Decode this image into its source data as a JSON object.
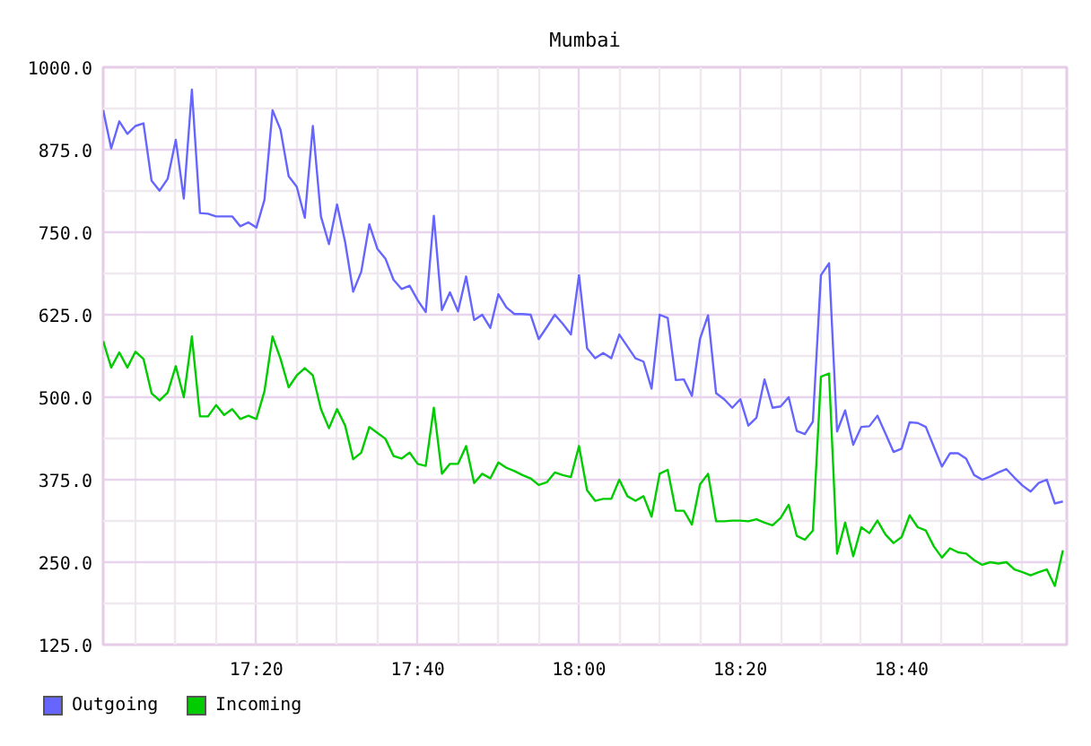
{
  "chart_data": {
    "type": "line",
    "title": "Mumbai",
    "x": [
      17.0167,
      17.0333,
      17.05,
      17.0667,
      17.0833,
      17.1,
      17.1167,
      17.1333,
      17.15,
      17.1667,
      17.1833,
      17.2,
      17.2167,
      17.2333,
      17.25,
      17.2667,
      17.2833,
      17.3,
      17.3167,
      17.3333,
      17.35,
      17.3667,
      17.3833,
      17.4,
      17.4167,
      17.4333,
      17.45,
      17.4667,
      17.4833,
      17.5,
      17.5167,
      17.5333,
      17.55,
      17.5667,
      17.5833,
      17.6,
      17.6167,
      17.6333,
      17.65,
      17.6667,
      17.6833,
      17.7,
      17.7167,
      17.7333,
      17.75,
      17.7667,
      17.7833,
      17.8,
      17.8167,
      17.8333,
      17.85,
      17.8667,
      17.8833,
      17.9,
      17.9167,
      17.9333,
      17.95,
      17.9667,
      17.9833,
      18.0,
      18.0167,
      18.0333,
      18.05,
      18.0667,
      18.0833,
      18.1,
      18.1167,
      18.1333,
      18.15,
      18.1667,
      18.1833,
      18.2,
      18.2167,
      18.2333,
      18.25,
      18.2667,
      18.2833,
      18.3,
      18.3167,
      18.3333,
      18.35,
      18.3667,
      18.3833,
      18.4,
      18.4167,
      18.4333,
      18.45,
      18.4667,
      18.4833,
      18.5,
      18.5167,
      18.5333,
      18.55,
      18.5667,
      18.5833,
      18.6,
      18.6167,
      18.6333,
      18.65,
      18.6667,
      18.6833,
      18.7,
      18.7167,
      18.7333,
      18.75,
      18.7667,
      18.7833,
      18.8,
      18.8167,
      18.8333,
      18.85,
      18.8667,
      18.8833,
      18.9,
      18.9167,
      18.9333,
      18.95,
      18.9667,
      18.9833,
      19.0
    ],
    "series": [
      {
        "name": "Outgoing",
        "color": "#6666ff",
        "values": [
          935,
          877,
          918,
          899,
          911,
          915,
          828,
          813,
          831,
          890,
          801,
          966,
          779,
          778,
          774,
          774,
          774,
          759,
          765,
          757,
          799,
          935,
          905,
          835,
          819,
          772,
          911,
          774,
          732,
          792,
          735,
          660,
          690,
          762,
          725,
          710,
          678,
          664,
          669,
          647,
          629,
          775,
          632,
          659,
          630,
          683,
          617,
          625,
          605,
          656,
          636,
          626,
          626,
          625,
          588,
          606,
          625,
          611,
          595,
          685,
          574,
          559,
          567,
          559,
          595,
          577,
          559,
          554,
          513,
          625,
          620,
          526,
          527,
          502,
          588,
          624,
          506,
          497,
          484,
          497,
          457,
          469,
          527,
          484,
          486,
          500,
          449,
          444,
          463,
          685,
          703,
          448,
          480,
          428,
          455,
          456,
          472,
          445,
          417,
          422,
          462,
          461,
          455,
          425,
          395,
          415,
          415,
          407,
          382,
          375,
          380,
          386,
          391,
          378,
          366,
          357,
          370,
          375,
          339,
          342
        ]
      },
      {
        "name": "Incoming",
        "color": "#00cc00",
        "values": [
          585,
          545,
          568,
          545,
          569,
          558,
          506,
          495,
          507,
          547,
          500,
          592,
          471,
          471,
          488,
          473,
          482,
          467,
          472,
          467,
          509,
          592,
          558,
          515,
          533,
          544,
          533,
          482,
          453,
          482,
          457,
          406,
          416,
          455,
          446,
          437,
          411,
          407,
          416,
          399,
          396,
          484,
          384,
          399,
          399,
          426,
          370,
          384,
          377,
          401,
          393,
          388,
          382,
          377,
          367,
          371,
          386,
          382,
          379,
          426,
          359,
          343,
          346,
          346,
          375,
          350,
          343,
          350,
          319,
          384,
          390,
          328,
          328,
          307,
          368,
          384,
          312,
          312,
          313,
          313,
          312,
          315,
          310,
          306,
          317,
          337,
          290,
          284,
          298,
          531,
          536,
          263,
          310,
          259,
          303,
          294,
          313,
          292,
          279,
          288,
          321,
          303,
          298,
          274,
          257,
          271,
          265,
          263,
          253,
          246,
          250,
          248,
          250,
          239,
          235,
          230,
          235,
          239,
          214,
          268
        ]
      }
    ],
    "xlim": [
      17.0167,
      19.008
    ],
    "xticks": [
      {
        "value": 17.0833,
        "label": null
      },
      {
        "value": 17.1667,
        "label": null
      },
      {
        "value": 17.25,
        "label": null
      },
      {
        "value": 17.3333,
        "label": "17:20"
      },
      {
        "value": 17.4167,
        "label": null
      },
      {
        "value": 17.5,
        "label": null
      },
      {
        "value": 17.5833,
        "label": null
      },
      {
        "value": 17.6667,
        "label": "17:40"
      },
      {
        "value": 17.75,
        "label": null
      },
      {
        "value": 17.8333,
        "label": null
      },
      {
        "value": 17.9167,
        "label": null
      },
      {
        "value": 18.0,
        "label": "18:00"
      },
      {
        "value": 18.0833,
        "label": null
      },
      {
        "value": 18.1667,
        "label": null
      },
      {
        "value": 18.25,
        "label": null
      },
      {
        "value": 18.3333,
        "label": "18:20"
      },
      {
        "value": 18.4167,
        "label": null
      },
      {
        "value": 18.5,
        "label": null
      },
      {
        "value": 18.5833,
        "label": null
      },
      {
        "value": 18.6667,
        "label": "18:40"
      },
      {
        "value": 18.75,
        "label": null
      },
      {
        "value": 18.8333,
        "label": null
      },
      {
        "value": 18.9167,
        "label": null
      }
    ],
    "ylim": [
      125,
      1000
    ],
    "yticks": [
      {
        "value": 125,
        "label": "125.0"
      },
      {
        "value": 187.5,
        "label": null
      },
      {
        "value": 250,
        "label": "250.0"
      },
      {
        "value": 312.5,
        "label": null
      },
      {
        "value": 375,
        "label": "375.0"
      },
      {
        "value": 437.5,
        "label": null
      },
      {
        "value": 500,
        "label": "500.0"
      },
      {
        "value": 562.5,
        "label": null
      },
      {
        "value": 625,
        "label": "625.0"
      },
      {
        "value": 687.5,
        "label": null
      },
      {
        "value": 750,
        "label": "750.0"
      },
      {
        "value": 812.5,
        "label": null
      },
      {
        "value": 875,
        "label": "875.0"
      },
      {
        "value": 937.5,
        "label": null
      },
      {
        "value": 1000,
        "label": "1000.0"
      }
    ],
    "grid": true,
    "legend": "bottom left",
    "line_style": "solid"
  }
}
